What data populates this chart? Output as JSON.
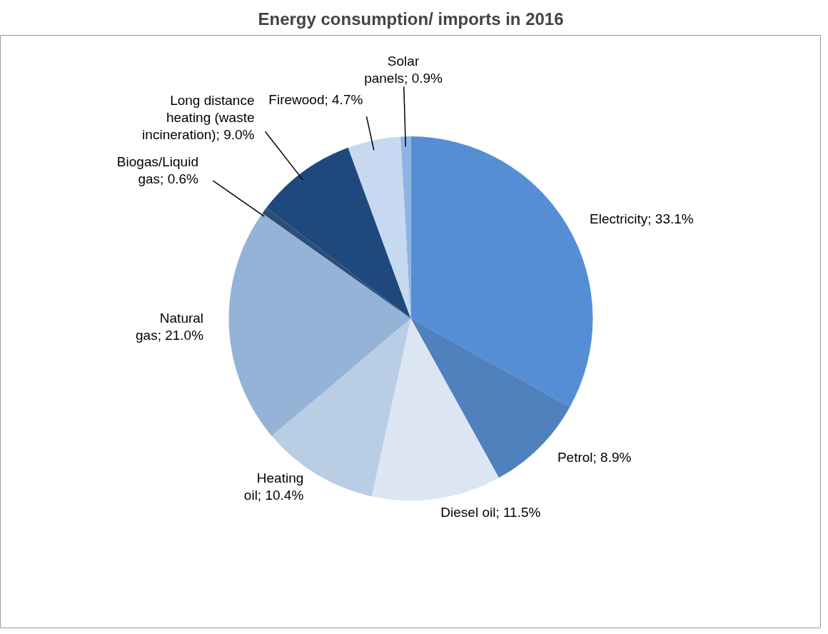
{
  "chart_data": {
    "type": "pie",
    "title": "Energy consumption/ imports in 2016",
    "categories": [
      "Electricity",
      "Petrol",
      "Diesel oil",
      "Heating oil",
      "Natural gas",
      "Biogas/Liquid gas",
      "Long distance heating (waste incineration)",
      "Firewood",
      "Solar panels"
    ],
    "values": [
      33.1,
      8.9,
      11.5,
      10.4,
      21.0,
      0.6,
      9.0,
      4.7,
      0.9
    ],
    "colors": [
      "#558ed5",
      "#4f81bd",
      "#dce6f2",
      "#b9cde5",
      "#95b3d7",
      "#2c4d75",
      "#1f497d",
      "#c6d9f1",
      "#8eb4e3"
    ],
    "value_labels": [
      "33.1%",
      "8.9%",
      "11.5%",
      "10.4%",
      "21.0%",
      "0.6%",
      "9.0%",
      "4.7%",
      "0.9%"
    ]
  }
}
